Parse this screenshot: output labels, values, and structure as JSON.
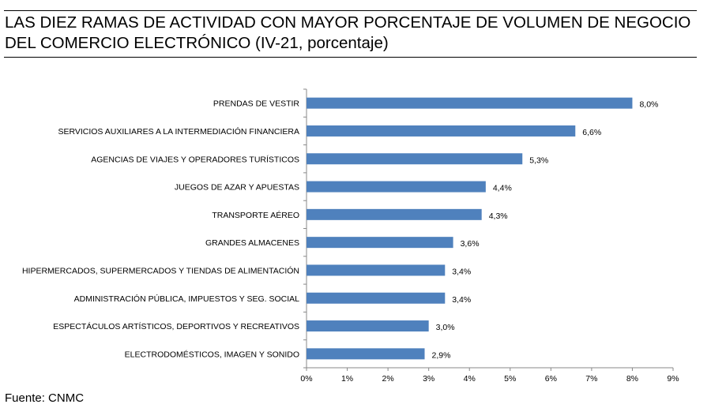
{
  "header": {
    "title_line1": "LAS DIEZ RAMAS DE ACTIVIDAD CON MAYOR PORCENTAJE DE VOLUMEN DE NEGOCIO",
    "title_line2": "DEL COMERCIO ELECTRÓNICO (IV-21, porcentaje)"
  },
  "footer": {
    "source": "Fuente: CNMC"
  },
  "chart_data": {
    "type": "bar",
    "orientation": "horizontal",
    "title": "LAS DIEZ RAMAS DE ACTIVIDAD CON MAYOR PORCENTAJE DE VOLUMEN DE NEGOCIO DEL COMERCIO ELECTRÓNICO (IV-21, porcentaje)",
    "categories": [
      "PRENDAS DE VESTIR",
      "SERVICIOS AUXILIARES A LA INTERMEDIACIÓN FINANCIERA",
      "AGENCIAS DE VIAJES Y OPERADORES TURÍSTICOS",
      "JUEGOS DE AZAR Y APUESTAS",
      "TRANSPORTE AÉREO",
      "GRANDES ALMACENES",
      "HIPERMERCADOS, SUPERMERCADOS Y TIENDAS DE ALIMENTACIÓN",
      "ADMINISTRACIÓN PÚBLICA, IMPUESTOS Y SEG. SOCIAL",
      "ESPECTÁCULOS ARTÍSTICOS, DEPORTIVOS Y RECREATIVOS",
      "ELECTRODOMÉSTICOS,  IMAGEN Y SONIDO"
    ],
    "values": [
      8.0,
      6.6,
      5.3,
      4.4,
      4.3,
      3.6,
      3.4,
      3.4,
      3.0,
      2.9
    ],
    "value_labels": [
      "8,0%",
      "6,6%",
      "5,3%",
      "4,4%",
      "4,3%",
      "3,6%",
      "3,4%",
      "3,4%",
      "3,0%",
      "2,9%"
    ],
    "xlim": [
      0,
      9
    ],
    "xticks": [
      "0%",
      "1%",
      "2%",
      "3%",
      "4%",
      "5%",
      "6%",
      "7%",
      "8%",
      "9%"
    ],
    "xlabel": "",
    "ylabel": "",
    "grid": false,
    "legend": "none",
    "bar_color": "#4f81bd"
  }
}
